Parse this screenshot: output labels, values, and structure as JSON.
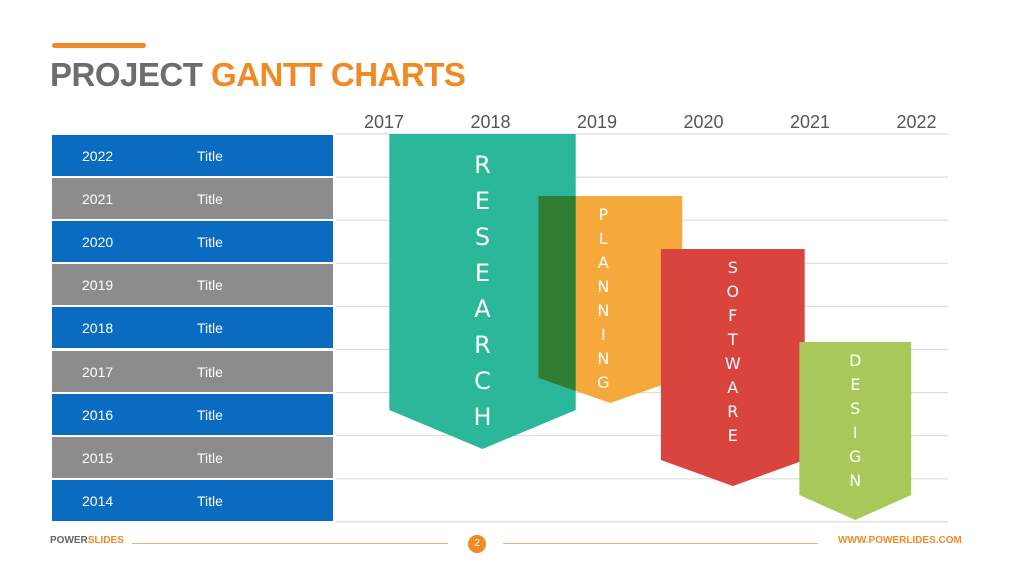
{
  "title": {
    "part1": "PROJECT",
    "part2": "GANTT CHARTS"
  },
  "colors": {
    "accent": "#f08a24",
    "row_blue": "#0a6cc1",
    "row_gray": "#8c8c8c",
    "title_gray": "#6d6d6d"
  },
  "chart_data": {
    "type": "gantt",
    "x_ticks": [
      "2017",
      "2018",
      "2019",
      "2020",
      "2021",
      "2022"
    ],
    "rows": [
      {
        "year": "2022",
        "title": "Title",
        "color": "blue"
      },
      {
        "year": "2021",
        "title": "Title",
        "color": "gray"
      },
      {
        "year": "2020",
        "title": "Title",
        "color": "blue"
      },
      {
        "year": "2019",
        "title": "Title",
        "color": "gray"
      },
      {
        "year": "2018",
        "title": "Title",
        "color": "blue"
      },
      {
        "year": "2017",
        "title": "Title",
        "color": "gray"
      },
      {
        "year": "2016",
        "title": "Title",
        "color": "blue"
      },
      {
        "year": "2015",
        "title": "Title",
        "color": "gray"
      },
      {
        "year": "2014",
        "title": "Title",
        "color": "blue"
      }
    ],
    "tasks": [
      {
        "label": "RESEARCH",
        "color": "#2bb79a",
        "start": 2017.05,
        "end": 2018.8
      },
      {
        "label": "PLANNING",
        "color": "#f6a93b",
        "start": 2018.45,
        "end": 2019.8
      },
      {
        "label": "SOFTWARE",
        "color": "#d9443e",
        "start": 2019.6,
        "end": 2020.95
      },
      {
        "label": "DESIGN",
        "color": "#a8c85a",
        "start": 2020.9,
        "end": 2021.95
      }
    ]
  },
  "footer": {
    "brand1": "POWER",
    "brand2": "SLIDES",
    "page": "2",
    "url": "WWW.POWERLIDES.COM"
  }
}
